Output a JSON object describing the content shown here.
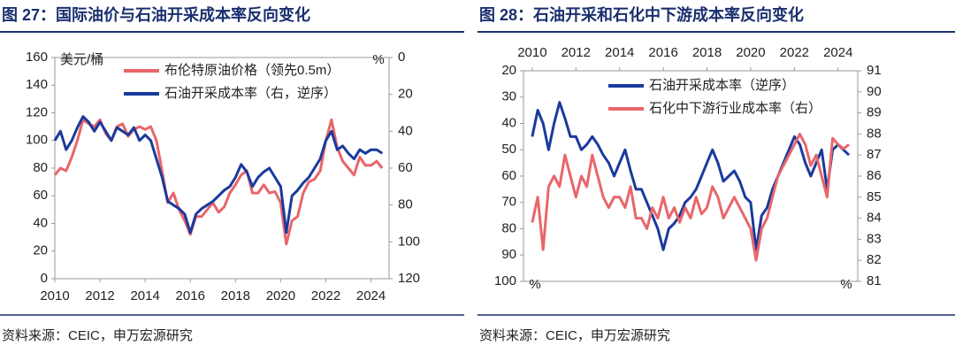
{
  "chart_data": [
    {
      "type": "line",
      "title": "图 27：国际油价与石油开采成本率反向变化",
      "source": "资料来源：CEIC，申万宏源研究",
      "y_label": "美元/桶",
      "y2_label": "%",
      "xlim": [
        2010,
        2024.8
      ],
      "xticks": [
        2010,
        2012,
        2014,
        2016,
        2018,
        2020,
        2022,
        2024
      ],
      "ylim": [
        0,
        160
      ],
      "yticks": [
        0,
        20,
        40,
        60,
        80,
        100,
        120,
        140,
        160
      ],
      "y2lim": [
        0,
        120
      ],
      "y2ticks": [
        0,
        20,
        40,
        60,
        80,
        100,
        120
      ],
      "y2_inverted": true,
      "x": [
        2010,
        2010.25,
        2010.5,
        2010.75,
        2011,
        2011.25,
        2011.5,
        2011.75,
        2012,
        2012.25,
        2012.5,
        2012.75,
        2013,
        2013.25,
        2013.5,
        2013.75,
        2014,
        2014.25,
        2014.5,
        2014.75,
        2015,
        2015.25,
        2015.5,
        2015.75,
        2016,
        2016.25,
        2016.5,
        2016.75,
        2017,
        2017.25,
        2017.5,
        2017.75,
        2018,
        2018.25,
        2018.5,
        2018.75,
        2019,
        2019.25,
        2019.5,
        2019.75,
        2020,
        2020.25,
        2020.5,
        2020.75,
        2021,
        2021.25,
        2021.5,
        2021.75,
        2022,
        2022.25,
        2022.5,
        2022.75,
        2023,
        2023.25,
        2023.5,
        2023.75,
        2024,
        2024.25,
        2024.5
      ],
      "series": [
        {
          "name": "布伦特原油价格（领先0.5m）",
          "color": "#e8666a",
          "axis": "y",
          "values": [
            75,
            80,
            78,
            88,
            100,
            115,
            112,
            110,
            115,
            105,
            100,
            110,
            112,
            103,
            108,
            110,
            108,
            110,
            100,
            78,
            55,
            62,
            50,
            42,
            32,
            45,
            45,
            50,
            55,
            48,
            52,
            62,
            68,
            75,
            78,
            62,
            62,
            68,
            62,
            63,
            55,
            25,
            42,
            45,
            62,
            70,
            72,
            78,
            100,
            115,
            95,
            85,
            80,
            75,
            88,
            82,
            82,
            85,
            80
          ]
        },
        {
          "name": "石油开采成本率（右，逆序）",
          "color": "#1a3a9c",
          "axis": "y2",
          "values": [
            45,
            40,
            50,
            45,
            38,
            32,
            35,
            40,
            35,
            40,
            45,
            38,
            40,
            42,
            38,
            45,
            42,
            45,
            55,
            65,
            78,
            80,
            82,
            85,
            95,
            85,
            82,
            80,
            78,
            75,
            72,
            70,
            65,
            58,
            62,
            70,
            65,
            62,
            60,
            65,
            70,
            95,
            75,
            72,
            68,
            65,
            60,
            55,
            45,
            40,
            50,
            48,
            52,
            55,
            50,
            52,
            50,
            50,
            52
          ]
        }
      ]
    },
    {
      "type": "line",
      "title": "图 28：石油开采和石化中下游成本率反向变化",
      "source": "资料来源：CEIC，申万宏源研究",
      "y_label": "%",
      "y2_label": "%",
      "xlim": [
        2009.6,
        2024.9
      ],
      "xticks": [
        2010,
        2012,
        2014,
        2016,
        2018,
        2020,
        2022,
        2024
      ],
      "x_axis_top": true,
      "ylim": [
        20,
        100
      ],
      "yticks": [
        20,
        30,
        40,
        50,
        60,
        70,
        80,
        90,
        100
      ],
      "y_inverted": true,
      "y2lim": [
        81,
        91
      ],
      "y2ticks": [
        81,
        82,
        83,
        84,
        85,
        86,
        87,
        88,
        89,
        90,
        91
      ],
      "x": [
        2010,
        2010.25,
        2010.5,
        2010.75,
        2011,
        2011.25,
        2011.5,
        2011.75,
        2012,
        2012.25,
        2012.5,
        2012.75,
        2013,
        2013.25,
        2013.5,
        2013.75,
        2014,
        2014.25,
        2014.5,
        2014.75,
        2015,
        2015.25,
        2015.5,
        2015.75,
        2016,
        2016.25,
        2016.5,
        2016.75,
        2017,
        2017.25,
        2017.5,
        2017.75,
        2018,
        2018.25,
        2018.5,
        2018.75,
        2019,
        2019.25,
        2019.5,
        2019.75,
        2020,
        2020.25,
        2020.5,
        2020.75,
        2021,
        2021.25,
        2021.5,
        2021.75,
        2022,
        2022.25,
        2022.5,
        2022.75,
        2023,
        2023.25,
        2023.5,
        2023.75,
        2024,
        2024.25,
        2024.5
      ],
      "series": [
        {
          "name": "石油开采成本率（逆序）",
          "color": "#1a3a9c",
          "axis": "y",
          "values": [
            45,
            35,
            40,
            50,
            40,
            32,
            38,
            45,
            45,
            50,
            48,
            45,
            48,
            52,
            55,
            60,
            55,
            50,
            58,
            65,
            65,
            70,
            75,
            80,
            88,
            80,
            78,
            75,
            70,
            68,
            65,
            60,
            55,
            50,
            55,
            62,
            60,
            58,
            62,
            68,
            70,
            88,
            75,
            72,
            65,
            60,
            55,
            50,
            45,
            48,
            55,
            60,
            55,
            50,
            65,
            50,
            48,
            50,
            52
          ]
        },
        {
          "name": "石化中下游行业成本率（右）",
          "color": "#e8666a",
          "axis": "y2",
          "values": [
            83.8,
            85,
            82.5,
            85.5,
            86,
            85.5,
            87,
            86,
            85,
            86,
            85.5,
            87,
            86,
            85,
            84.5,
            85,
            85,
            84.5,
            85.5,
            84,
            84,
            83.5,
            84.5,
            84,
            85,
            84,
            84.5,
            83.8,
            84.5,
            84,
            85,
            84.2,
            84.5,
            85.5,
            85,
            84,
            84.5,
            85,
            84.5,
            84,
            83.5,
            82,
            83.5,
            84,
            85,
            86,
            86.5,
            87,
            87.5,
            88,
            87.5,
            86.5,
            87,
            86,
            85,
            87.8,
            87.5,
            87.3,
            87.5
          ]
        }
      ]
    }
  ]
}
